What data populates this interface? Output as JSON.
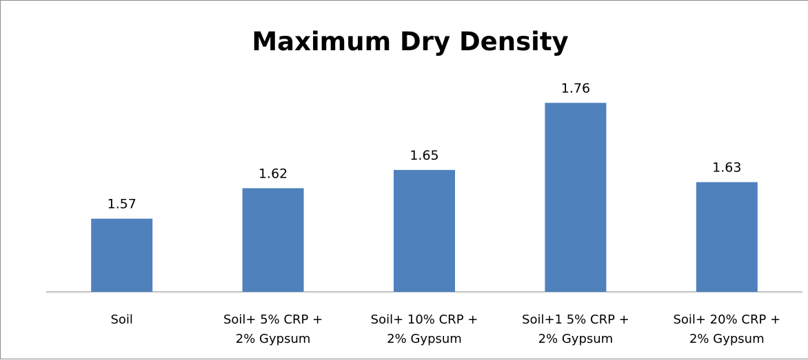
{
  "chart_data": {
    "type": "bar",
    "title": "Maximum Dry Density",
    "xlabel": "",
    "ylabel": "",
    "categories": [
      [
        "Soil"
      ],
      [
        "Soil+ 5% CRP +",
        "2% Gypsum"
      ],
      [
        "Soil+ 10% CRP +",
        "2% Gypsum"
      ],
      [
        "Soil+1 5% CRP +",
        "2% Gypsum"
      ],
      [
        "Soil+ 20% CRP +",
        "2% Gypsum"
      ]
    ],
    "values": [
      1.57,
      1.62,
      1.65,
      1.76,
      1.63
    ],
    "value_labels": [
      "1.57",
      "1.62",
      "1.65",
      "1.76",
      "1.63"
    ],
    "ylim": [
      1.45,
      1.8
    ],
    "grid": false,
    "legend": "none",
    "colors": {
      "bar": "#4f81bd",
      "axis": "#868686"
    }
  }
}
